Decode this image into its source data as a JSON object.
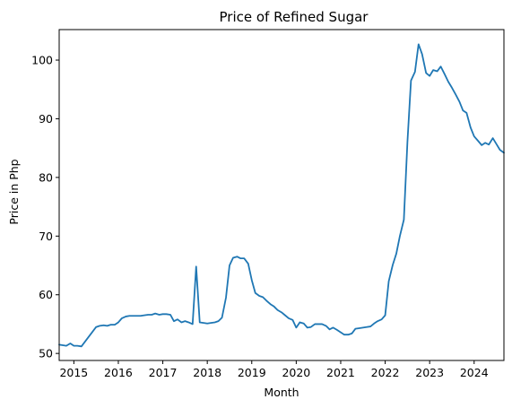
{
  "chart_data": {
    "type": "line",
    "title": "Price of Refined Sugar",
    "xlabel": "Month",
    "ylabel": "Price in Php",
    "xlim": [
      2014.67,
      2024.67
    ],
    "ylim": [
      48.8,
      105.2
    ],
    "grid": false,
    "legend": "none",
    "x_ticks": [
      2015,
      2016,
      2017,
      2018,
      2019,
      2020,
      2021,
      2022,
      2023,
      2024
    ],
    "y_ticks": [
      50,
      60,
      70,
      80,
      90,
      100
    ],
    "colors": {
      "line": "#1f77b4",
      "axes": "#000000"
    },
    "series": [
      {
        "x": [
          2014.67,
          2014.75,
          2014.83,
          2014.92,
          2015.0,
          2015.08,
          2015.17,
          2015.25,
          2015.33,
          2015.42,
          2015.5,
          2015.58,
          2015.67,
          2015.75,
          2015.83,
          2015.92,
          2016.0,
          2016.08,
          2016.17,
          2016.25,
          2016.33,
          2016.42,
          2016.5,
          2016.58,
          2016.67,
          2016.75,
          2016.83,
          2016.92,
          2017.0,
          2017.08,
          2017.17,
          2017.25,
          2017.33,
          2017.42,
          2017.5,
          2017.58,
          2017.67,
          2017.75,
          2017.83,
          2017.92,
          2018.0,
          2018.08,
          2018.17,
          2018.25,
          2018.33,
          2018.42,
          2018.5,
          2018.58,
          2018.67,
          2018.75,
          2018.83,
          2018.92,
          2019.0,
          2019.08,
          2019.17,
          2019.25,
          2019.33,
          2019.42,
          2019.5,
          2019.58,
          2019.67,
          2019.75,
          2019.83,
          2019.92,
          2020.0,
          2020.08,
          2020.17,
          2020.25,
          2020.33,
          2020.42,
          2020.5,
          2020.58,
          2020.67,
          2020.75,
          2020.83,
          2020.92,
          2021.0,
          2021.08,
          2021.17,
          2021.25,
          2021.33,
          2021.42,
          2021.5,
          2021.58,
          2021.67,
          2021.75,
          2021.83,
          2021.92,
          2022.0,
          2022.08,
          2022.17,
          2022.25,
          2022.33,
          2022.42,
          2022.5,
          2022.58,
          2022.67,
          2022.75,
          2022.83,
          2022.92,
          2023.0,
          2023.08,
          2023.17,
          2023.25,
          2023.33,
          2023.42,
          2023.5,
          2023.58,
          2023.67,
          2023.75,
          2023.83,
          2023.92,
          2024.0,
          2024.08,
          2024.17,
          2024.25,
          2024.33,
          2024.42,
          2024.5,
          2024.58,
          2024.67
        ],
        "values": [
          51.5,
          51.4,
          51.3,
          51.7,
          51.3,
          51.3,
          51.2,
          52.0,
          52.8,
          53.7,
          54.5,
          54.7,
          54.8,
          54.7,
          54.9,
          54.9,
          55.3,
          56.0,
          56.3,
          56.4,
          56.4,
          56.4,
          56.4,
          56.5,
          56.6,
          56.6,
          56.8,
          56.6,
          56.7,
          56.7,
          56.6,
          55.5,
          55.8,
          55.3,
          55.5,
          55.3,
          55.0,
          64.8,
          55.3,
          55.2,
          55.1,
          55.2,
          55.3,
          55.5,
          56.1,
          59.5,
          65.0,
          66.3,
          66.5,
          66.2,
          66.2,
          65.3,
          62.5,
          60.3,
          59.8,
          59.6,
          59.0,
          58.4,
          58.0,
          57.4,
          57.0,
          56.5,
          56.0,
          55.7,
          54.4,
          55.3,
          55.1,
          54.4,
          54.5,
          55.0,
          55.0,
          55.0,
          54.7,
          54.1,
          54.4,
          54.0,
          53.6,
          53.2,
          53.2,
          53.4,
          54.2,
          54.3,
          54.4,
          54.5,
          54.6,
          55.1,
          55.5,
          55.8,
          56.5,
          62.3,
          65.1,
          67.0,
          70.0,
          72.8,
          86.0,
          96.5,
          98.0,
          102.7,
          101.0,
          97.8,
          97.3,
          98.3,
          98.1,
          98.9,
          97.7,
          96.3,
          95.3,
          94.2,
          92.9,
          91.4,
          91.0,
          88.5,
          87.0,
          86.3,
          85.5,
          85.9,
          85.6,
          86.7,
          85.7,
          84.7,
          84.2
        ]
      }
    ]
  }
}
